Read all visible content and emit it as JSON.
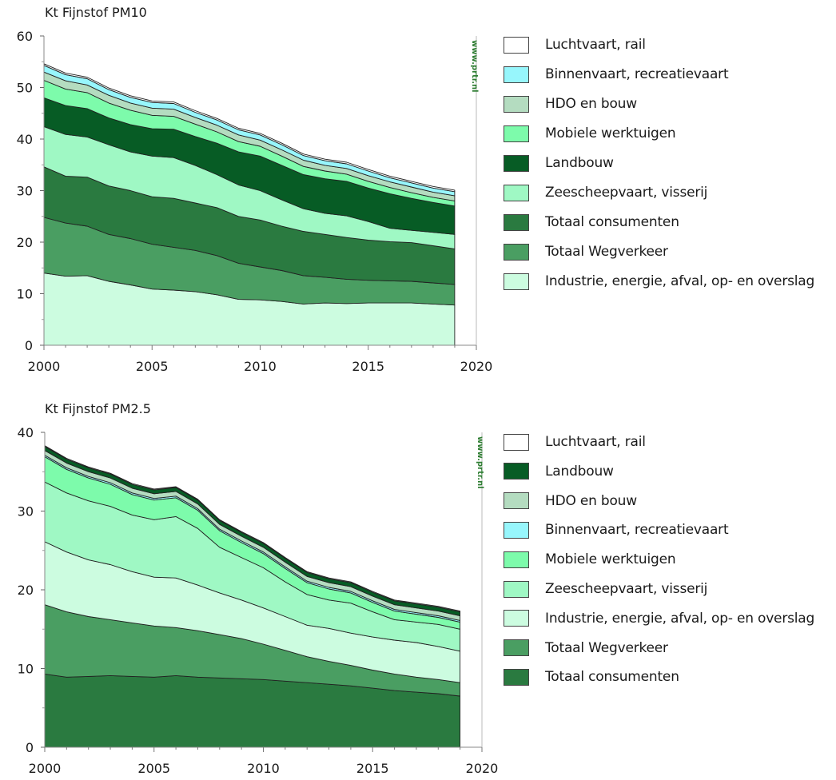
{
  "chart_data": [
    {
      "type": "area",
      "stacked": true,
      "title": "Kt Fijnstof PM10",
      "watermark": "www.prtr.nl",
      "xlim": [
        2000,
        2020
      ],
      "ylim": [
        0,
        60
      ],
      "x_ticks": [
        2000,
        2005,
        2010,
        2015,
        2020
      ],
      "y_ticks": [
        0,
        10,
        20,
        30,
        40,
        50,
        60
      ],
      "grid": false,
      "legend_position": "right",
      "x": [
        2000,
        2001,
        2002,
        2003,
        2004,
        2005,
        2006,
        2007,
        2008,
        2009,
        2010,
        2011,
        2012,
        2013,
        2014,
        2015,
        2016,
        2017,
        2018,
        2019
      ],
      "series": [
        {
          "name": "Industrie, energie, afval, op- en overslag",
          "color": "#ccfce0",
          "values": [
            14,
            13.4,
            13.5,
            12.4,
            11.7,
            10.9,
            10.7,
            10.4,
            9.8,
            8.9,
            8.8,
            8.5,
            8,
            8.2,
            8.1,
            8.2,
            8.2,
            8.2,
            8,
            7.8
          ]
        },
        {
          "name": "Totaal Wegverkeer",
          "color": "#4a9e62",
          "values": [
            10.8,
            10.3,
            9.6,
            9.1,
            9,
            8.7,
            8.3,
            8,
            7.6,
            7,
            6.4,
            6,
            5.5,
            5,
            4.7,
            4.4,
            4.3,
            4.2,
            4.1,
            4
          ]
        },
        {
          "name": "Totaal consumenten",
          "color": "#2a7a40",
          "values": [
            9.8,
            9.1,
            9.5,
            9.4,
            9.3,
            9.2,
            9.5,
            9.2,
            9.3,
            9.1,
            9.1,
            8.6,
            8.6,
            8.3,
            8.1,
            7.8,
            7.6,
            7.5,
            7.2,
            6.9
          ]
        },
        {
          "name": "Zeescheepvaart, visserij",
          "color": "#9ff8c4",
          "values": [
            7.8,
            8.1,
            7.8,
            8,
            7.5,
            7.9,
            7.9,
            7.3,
            6.4,
            6.1,
            5.7,
            5.1,
            4.4,
            4.1,
            4.2,
            3.6,
            2.6,
            2.4,
            2.6,
            2.8
          ]
        },
        {
          "name": "Landbouw",
          "color": "#075c25",
          "values": [
            5.6,
            5.6,
            5.5,
            5.2,
            5.3,
            5.3,
            5.5,
            5.6,
            6.1,
            6.4,
            6.7,
            6.7,
            6.6,
            6.7,
            6.7,
            6.5,
            6.7,
            6.2,
            5.8,
            5.5
          ]
        },
        {
          "name": "Mobiele werktuigen",
          "color": "#7dfbab",
          "values": [
            3.4,
            3.2,
            3.1,
            2.9,
            2.8,
            2.6,
            2.5,
            2.4,
            2.2,
            2,
            1.9,
            1.8,
            1.6,
            1.5,
            1.4,
            1.3,
            1.2,
            1.1,
            1,
            1
          ]
        },
        {
          "name": "HDO en bouw",
          "color": "#b4dcc0",
          "values": [
            1.6,
            1.6,
            1.5,
            1.5,
            1.4,
            1.4,
            1.4,
            1.3,
            1.3,
            1.3,
            1.2,
            1.2,
            1.2,
            1.1,
            1.1,
            1.1,
            1.1,
            1.1,
            1,
            1
          ]
        },
        {
          "name": "Binnenvaart, recreatievaart",
          "color": "#97f6fc",
          "values": [
            1.3,
            1.2,
            1.2,
            1.1,
            1.1,
            1.1,
            1.1,
            1,
            1,
            1,
            1,
            1,
            0.9,
            0.9,
            0.9,
            0.9,
            0.8,
            0.8,
            0.8,
            0.8
          ]
        },
        {
          "name": "Luchtvaart, rail",
          "color": "#ffffff",
          "values": [
            0.3,
            0.3,
            0.3,
            0.3,
            0.3,
            0.3,
            0.3,
            0.3,
            0.3,
            0.3,
            0.3,
            0.3,
            0.3,
            0.3,
            0.3,
            0.3,
            0.3,
            0.3,
            0.3,
            0.3
          ]
        }
      ]
    },
    {
      "type": "area",
      "stacked": true,
      "title": "Kt Fijnstof PM2.5",
      "watermark": "www.prtr.nl",
      "xlim": [
        2000,
        2020
      ],
      "ylim": [
        0,
        40
      ],
      "x_ticks": [
        2000,
        2005,
        2010,
        2015,
        2020
      ],
      "y_ticks": [
        0,
        10,
        20,
        30,
        40
      ],
      "grid": false,
      "legend_position": "right",
      "x": [
        2000,
        2001,
        2002,
        2003,
        2004,
        2005,
        2006,
        2007,
        2008,
        2009,
        2010,
        2011,
        2012,
        2013,
        2014,
        2015,
        2016,
        2017,
        2018,
        2019
      ],
      "series": [
        {
          "name": "Totaal consumenten",
          "color": "#2a7a40",
          "values": [
            9.3,
            8.9,
            9,
            9.1,
            9,
            8.9,
            9.1,
            8.9,
            8.8,
            8.7,
            8.6,
            8.4,
            8.2,
            8,
            7.8,
            7.5,
            7.2,
            7,
            6.8,
            6.5
          ]
        },
        {
          "name": "Totaal Wegverkeer",
          "color": "#4a9e62",
          "values": [
            8.8,
            8.3,
            7.6,
            7.1,
            6.8,
            6.5,
            6.1,
            5.9,
            5.5,
            5.1,
            4.5,
            3.9,
            3.3,
            2.9,
            2.6,
            2.3,
            2.1,
            1.9,
            1.8,
            1.7
          ]
        },
        {
          "name": "Industrie, energie, afval, op- en overslag",
          "color": "#ccfce0",
          "values": [
            8,
            7.6,
            7.2,
            7,
            6.5,
            6.2,
            6.3,
            5.8,
            5.3,
            4.9,
            4.6,
            4.3,
            4,
            4.2,
            4.1,
            4.2,
            4.3,
            4.4,
            4.2,
            4
          ]
        },
        {
          "name": "Zeescheepvaart, visserij",
          "color": "#9ff8c4",
          "values": [
            7.6,
            7.5,
            7.5,
            7.4,
            7.2,
            7.3,
            7.8,
            7.2,
            5.8,
            5.4,
            5.1,
            4.4,
            3.9,
            3.6,
            3.8,
            3.2,
            2.6,
            2.6,
            2.8,
            2.8
          ]
        },
        {
          "name": "Mobiele werktuigen",
          "color": "#7dfbab",
          "values": [
            3.2,
            3,
            2.9,
            2.8,
            2.6,
            2.5,
            2.4,
            2.3,
            2.1,
            1.9,
            1.8,
            1.7,
            1.5,
            1.4,
            1.3,
            1.2,
            1.1,
            1,
            0.9,
            0.9
          ]
        },
        {
          "name": "Binnenvaart, recreatievaart",
          "color": "#97f6fc",
          "values": [
            0.2,
            0.2,
            0.2,
            0.2,
            0.2,
            0.2,
            0.2,
            0.2,
            0.2,
            0.2,
            0.2,
            0.2,
            0.2,
            0.2,
            0.2,
            0.2,
            0.2,
            0.2,
            0.2,
            0.2
          ]
        },
        {
          "name": "HDO en bouw",
          "color": "#b4dcc0",
          "values": [
            0.6,
            0.6,
            0.6,
            0.6,
            0.6,
            0.6,
            0.6,
            0.6,
            0.6,
            0.6,
            0.6,
            0.6,
            0.6,
            0.6,
            0.6,
            0.6,
            0.6,
            0.6,
            0.6,
            0.6
          ]
        },
        {
          "name": "Landbouw",
          "color": "#075c25",
          "values": [
            0.5,
            0.5,
            0.5,
            0.5,
            0.5,
            0.5,
            0.5,
            0.5,
            0.5,
            0.5,
            0.5,
            0.5,
            0.5,
            0.5,
            0.5,
            0.5,
            0.5,
            0.5,
            0.5,
            0.5
          ]
        },
        {
          "name": "Luchtvaart, rail",
          "color": "#ffffff",
          "values": [
            0.1,
            0.1,
            0.1,
            0.1,
            0.1,
            0.1,
            0.1,
            0.1,
            0.1,
            0.1,
            0.1,
            0.1,
            0.1,
            0.1,
            0.1,
            0.1,
            0.1,
            0.1,
            0.1,
            0.1
          ]
        }
      ]
    }
  ]
}
